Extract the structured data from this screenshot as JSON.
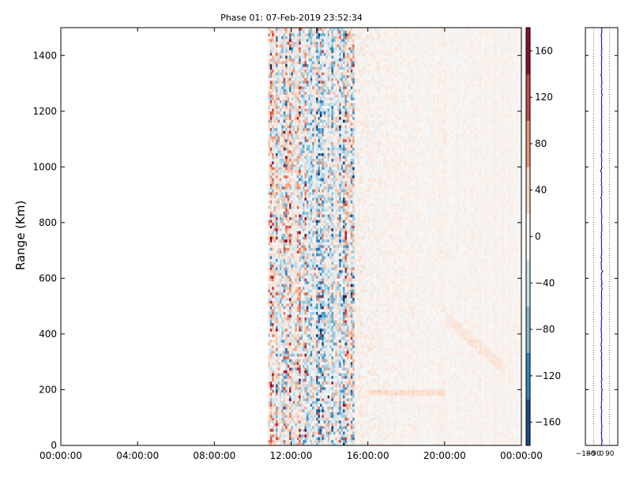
{
  "chart_data": [
    {
      "type": "heatmap",
      "title": "Phase 01: 07-Feb-2019 23:52:34",
      "ylabel": "Range (Km)",
      "xlabel": "",
      "x_ticks": [
        "00:00:00",
        "04:00:00",
        "08:00:00",
        "12:00:00",
        "16:00:00",
        "20:00:00",
        "00:00:00"
      ],
      "x_range_hours": [
        0,
        24
      ],
      "y_ticks": [
        0,
        200,
        400,
        600,
        800,
        1000,
        1200,
        1400
      ],
      "ylim": [
        0,
        1500
      ],
      "data_start_hour": 10.8,
      "strong_band_hours": [
        10.8,
        15.3
      ],
      "colormap": "RdBu_r",
      "grid": false,
      "colorbar": {
        "ticks": [
          "160",
          "120",
          "80",
          "40",
          "0",
          "−40",
          "−80",
          "−120",
          "−160"
        ],
        "tick_values": [
          160,
          120,
          80,
          40,
          0,
          -40,
          -80,
          -120,
          -160
        ],
        "range": [
          -180,
          180
        ],
        "colors": [
          "#053061",
          "#2166ac",
          "#4393c3",
          "#92c5de",
          "#d1e5f0",
          "#f7f7f7",
          "#fddbc7",
          "#f4a582",
          "#d6604d",
          "#b2182b",
          "#67001f"
        ]
      }
    },
    {
      "type": "line",
      "x_ticks": [
        "−180",
        "−90",
        "0",
        "90"
      ],
      "x_tick_values": [
        -180,
        -90,
        0,
        90
      ],
      "xlim": [
        -180,
        180
      ],
      "ylim": [
        0,
        1500
      ],
      "mean_x": 0,
      "line_color": "#0000cc",
      "grid": "vertical-dotted"
    }
  ]
}
